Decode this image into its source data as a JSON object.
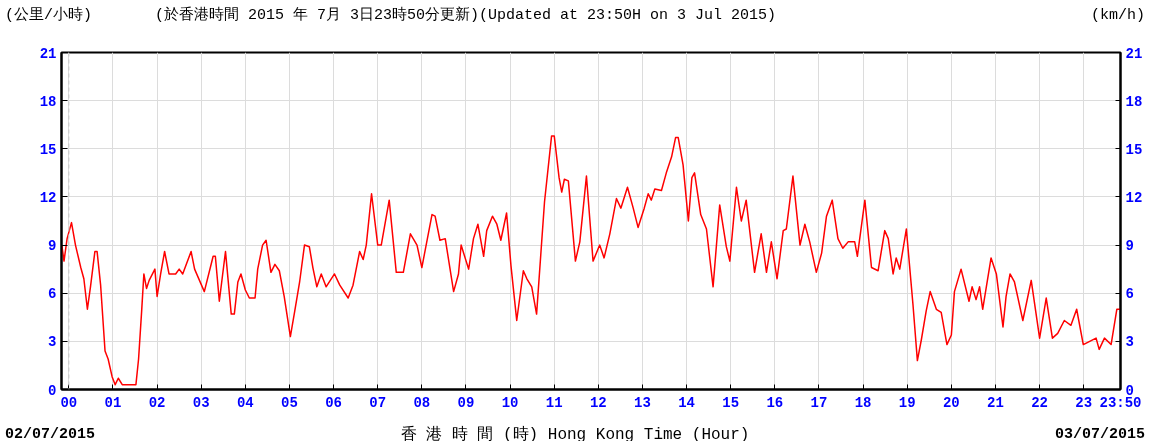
{
  "chart_data": {
    "type": "line",
    "title": "(於香港時間 2015 年 7月 3日23時50分更新)(Updated at 23:50H on 3 Jul 2015)",
    "ylabel": "(公里/小時)",
    "y2label": "(km/h)",
    "xlabel": "香 港 時 間 (時) Hong Kong Time (Hour)",
    "annotations": [
      "02/07/2015",
      "03/07/2015"
    ],
    "xlim": [
      -0.1667,
      23.8333
    ],
    "xticks": [
      {
        "value": 0,
        "label": "00"
      },
      {
        "value": 1,
        "label": "01"
      },
      {
        "value": 2,
        "label": "02"
      },
      {
        "value": 3,
        "label": "03"
      },
      {
        "value": 4,
        "label": "04"
      },
      {
        "value": 5,
        "label": "05"
      },
      {
        "value": 6,
        "label": "06"
      },
      {
        "value": 7,
        "label": "07"
      },
      {
        "value": 8,
        "label": "08"
      },
      {
        "value": 9,
        "label": "09"
      },
      {
        "value": 10,
        "label": "10"
      },
      {
        "value": 11,
        "label": "11"
      },
      {
        "value": 12,
        "label": "12"
      },
      {
        "value": 13,
        "label": "13"
      },
      {
        "value": 14,
        "label": "14"
      },
      {
        "value": 15,
        "label": "15"
      },
      {
        "value": 16,
        "label": "16"
      },
      {
        "value": 17,
        "label": "17"
      },
      {
        "value": 18,
        "label": "18"
      },
      {
        "value": 19,
        "label": "19"
      },
      {
        "value": 20,
        "label": "20"
      },
      {
        "value": 21,
        "label": "21"
      },
      {
        "value": 22,
        "label": "22"
      },
      {
        "value": 23,
        "label": "23"
      },
      {
        "value": 23.8333,
        "label": "23:50"
      }
    ],
    "ylim": [
      0,
      21
    ],
    "yticks": [
      0,
      3,
      6,
      9,
      12,
      15,
      18,
      21
    ],
    "y2lim": [
      0,
      21
    ],
    "y2ticks": [
      0,
      3,
      6,
      9,
      12,
      15,
      18,
      21
    ],
    "grid": true,
    "marker": "none",
    "line_style": "solid",
    "ref_lines": [
      {
        "axis": "x",
        "value": 0,
        "color": "#c8c8c8",
        "line_style": "dashed"
      }
    ],
    "series": [
      {
        "color": "#ff0000",
        "x": [
          -0.16,
          -0.11,
          -0.04,
          0.06,
          0.15,
          0.27,
          0.34,
          0.42,
          0.49,
          0.59,
          0.64,
          0.72,
          0.82,
          0.89,
          0.98,
          1.05,
          1.12,
          1.21,
          1.52,
          1.58,
          1.65,
          1.7,
          1.76,
          1.82,
          1.95,
          2.0,
          2.08,
          2.17,
          2.27,
          2.42,
          2.5,
          2.58,
          2.77,
          2.85,
          3.07,
          3.27,
          3.32,
          3.41,
          3.55,
          3.68,
          3.75,
          3.83,
          3.9,
          4.0,
          4.09,
          4.22,
          4.28,
          4.39,
          4.47,
          4.58,
          4.67,
          4.77,
          4.88,
          5.02,
          5.12,
          5.23,
          5.34,
          5.45,
          5.53,
          5.62,
          5.72,
          5.83,
          6.02,
          6.14,
          6.33,
          6.44,
          6.59,
          6.67,
          6.74,
          6.86,
          7.0,
          7.08,
          7.26,
          7.42,
          7.58,
          7.74,
          7.89,
          8.0,
          8.23,
          8.3,
          8.41,
          8.53,
          8.72,
          8.83,
          8.89,
          9.06,
          9.17,
          9.27,
          9.4,
          9.47,
          9.6,
          9.7,
          9.79,
          9.92,
          10.02,
          10.15,
          10.3,
          10.38,
          10.49,
          10.6,
          10.78,
          10.94,
          11.0,
          11.11,
          11.17,
          11.23,
          11.32,
          11.48,
          11.58,
          11.73,
          11.88,
          12.03,
          12.13,
          12.26,
          12.41,
          12.51,
          12.66,
          12.79,
          12.9,
          13.04,
          13.13,
          13.2,
          13.28,
          13.43,
          13.54,
          13.66,
          13.75,
          13.81,
          13.92,
          14.04,
          14.12,
          14.18,
          14.32,
          14.45,
          14.6,
          14.75,
          14.9,
          14.98,
          15.13,
          15.24,
          15.35,
          15.54,
          15.69,
          15.81,
          15.92,
          16.05,
          16.19,
          16.26,
          16.41,
          16.57,
          16.68,
          16.79,
          16.94,
          17.06,
          17.17,
          17.3,
          17.43,
          17.54,
          17.66,
          17.81,
          17.87,
          18.04,
          18.19,
          18.34,
          18.49,
          18.57,
          18.68,
          18.75,
          18.83,
          18.98,
          19.13,
          19.23,
          19.32,
          19.43,
          19.52,
          19.66,
          19.77,
          19.9,
          20.0,
          20.07,
          20.22,
          20.4,
          20.47,
          20.56,
          20.64,
          20.71,
          20.9,
          21.02,
          21.17,
          21.24,
          21.33,
          21.43,
          21.62,
          21.81,
          22.0,
          22.15,
          22.29,
          22.41,
          22.56,
          22.71,
          22.84,
          22.99,
          23.28,
          23.35,
          23.47,
          23.62,
          23.75,
          23.83
        ],
        "values": [
          9.0,
          8.0,
          9.4,
          10.4,
          9.0,
          7.6,
          6.9,
          5.0,
          6.4,
          8.6,
          8.6,
          6.5,
          2.4,
          1.9,
          0.8,
          0.3,
          0.7,
          0.3,
          0.3,
          1.9,
          4.9,
          7.2,
          6.3,
          6.8,
          7.5,
          5.8,
          7.2,
          8.6,
          7.2,
          7.2,
          7.5,
          7.2,
          8.6,
          7.5,
          6.1,
          8.3,
          8.3,
          5.5,
          8.6,
          4.7,
          4.7,
          6.7,
          7.2,
          6.2,
          5.7,
          5.7,
          7.5,
          9.0,
          9.3,
          7.3,
          7.8,
          7.4,
          5.8,
          3.3,
          4.9,
          6.7,
          9.0,
          8.9,
          7.6,
          6.4,
          7.2,
          6.4,
          7.2,
          6.5,
          5.7,
          6.5,
          8.6,
          8.1,
          9.0,
          12.2,
          9.0,
          9.0,
          11.8,
          7.3,
          7.3,
          9.7,
          9.0,
          7.6,
          10.9,
          10.8,
          9.3,
          9.4,
          6.1,
          7.2,
          9.0,
          7.5,
          9.4,
          10.3,
          8.3,
          9.9,
          10.8,
          10.3,
          9.3,
          11.0,
          7.7,
          4.3,
          7.4,
          6.9,
          6.4,
          4.7,
          11.7,
          15.8,
          15.8,
          13.2,
          12.3,
          13.1,
          13.0,
          8.0,
          9.2,
          13.3,
          8.0,
          9.0,
          8.2,
          9.7,
          11.9,
          11.3,
          12.6,
          11.3,
          10.1,
          11.3,
          12.2,
          11.8,
          12.5,
          12.4,
          13.5,
          14.5,
          15.7,
          15.7,
          14.0,
          10.5,
          13.2,
          13.5,
          10.9,
          10.0,
          6.4,
          11.5,
          8.9,
          8.0,
          12.6,
          10.5,
          11.8,
          7.3,
          9.7,
          7.3,
          9.2,
          6.9,
          9.9,
          10.0,
          13.3,
          9.0,
          10.3,
          9.2,
          7.3,
          8.5,
          10.8,
          11.8,
          9.4,
          8.8,
          9.2,
          9.2,
          8.3,
          11.8,
          7.6,
          7.4,
          9.9,
          9.4,
          7.2,
          8.2,
          7.5,
          10.0,
          5.3,
          1.8,
          3.1,
          4.9,
          6.1,
          5.0,
          4.8,
          2.8,
          3.4,
          6.1,
          7.5,
          5.5,
          6.4,
          5.6,
          6.4,
          5.0,
          8.2,
          7.2,
          3.9,
          5.8,
          7.2,
          6.7,
          4.3,
          6.8,
          3.2,
          5.7,
          3.2,
          3.5,
          4.3,
          4.0,
          5.0,
          2.8,
          3.2,
          2.5,
          3.2,
          2.8,
          5.0,
          5.0
        ]
      }
    ]
  }
}
